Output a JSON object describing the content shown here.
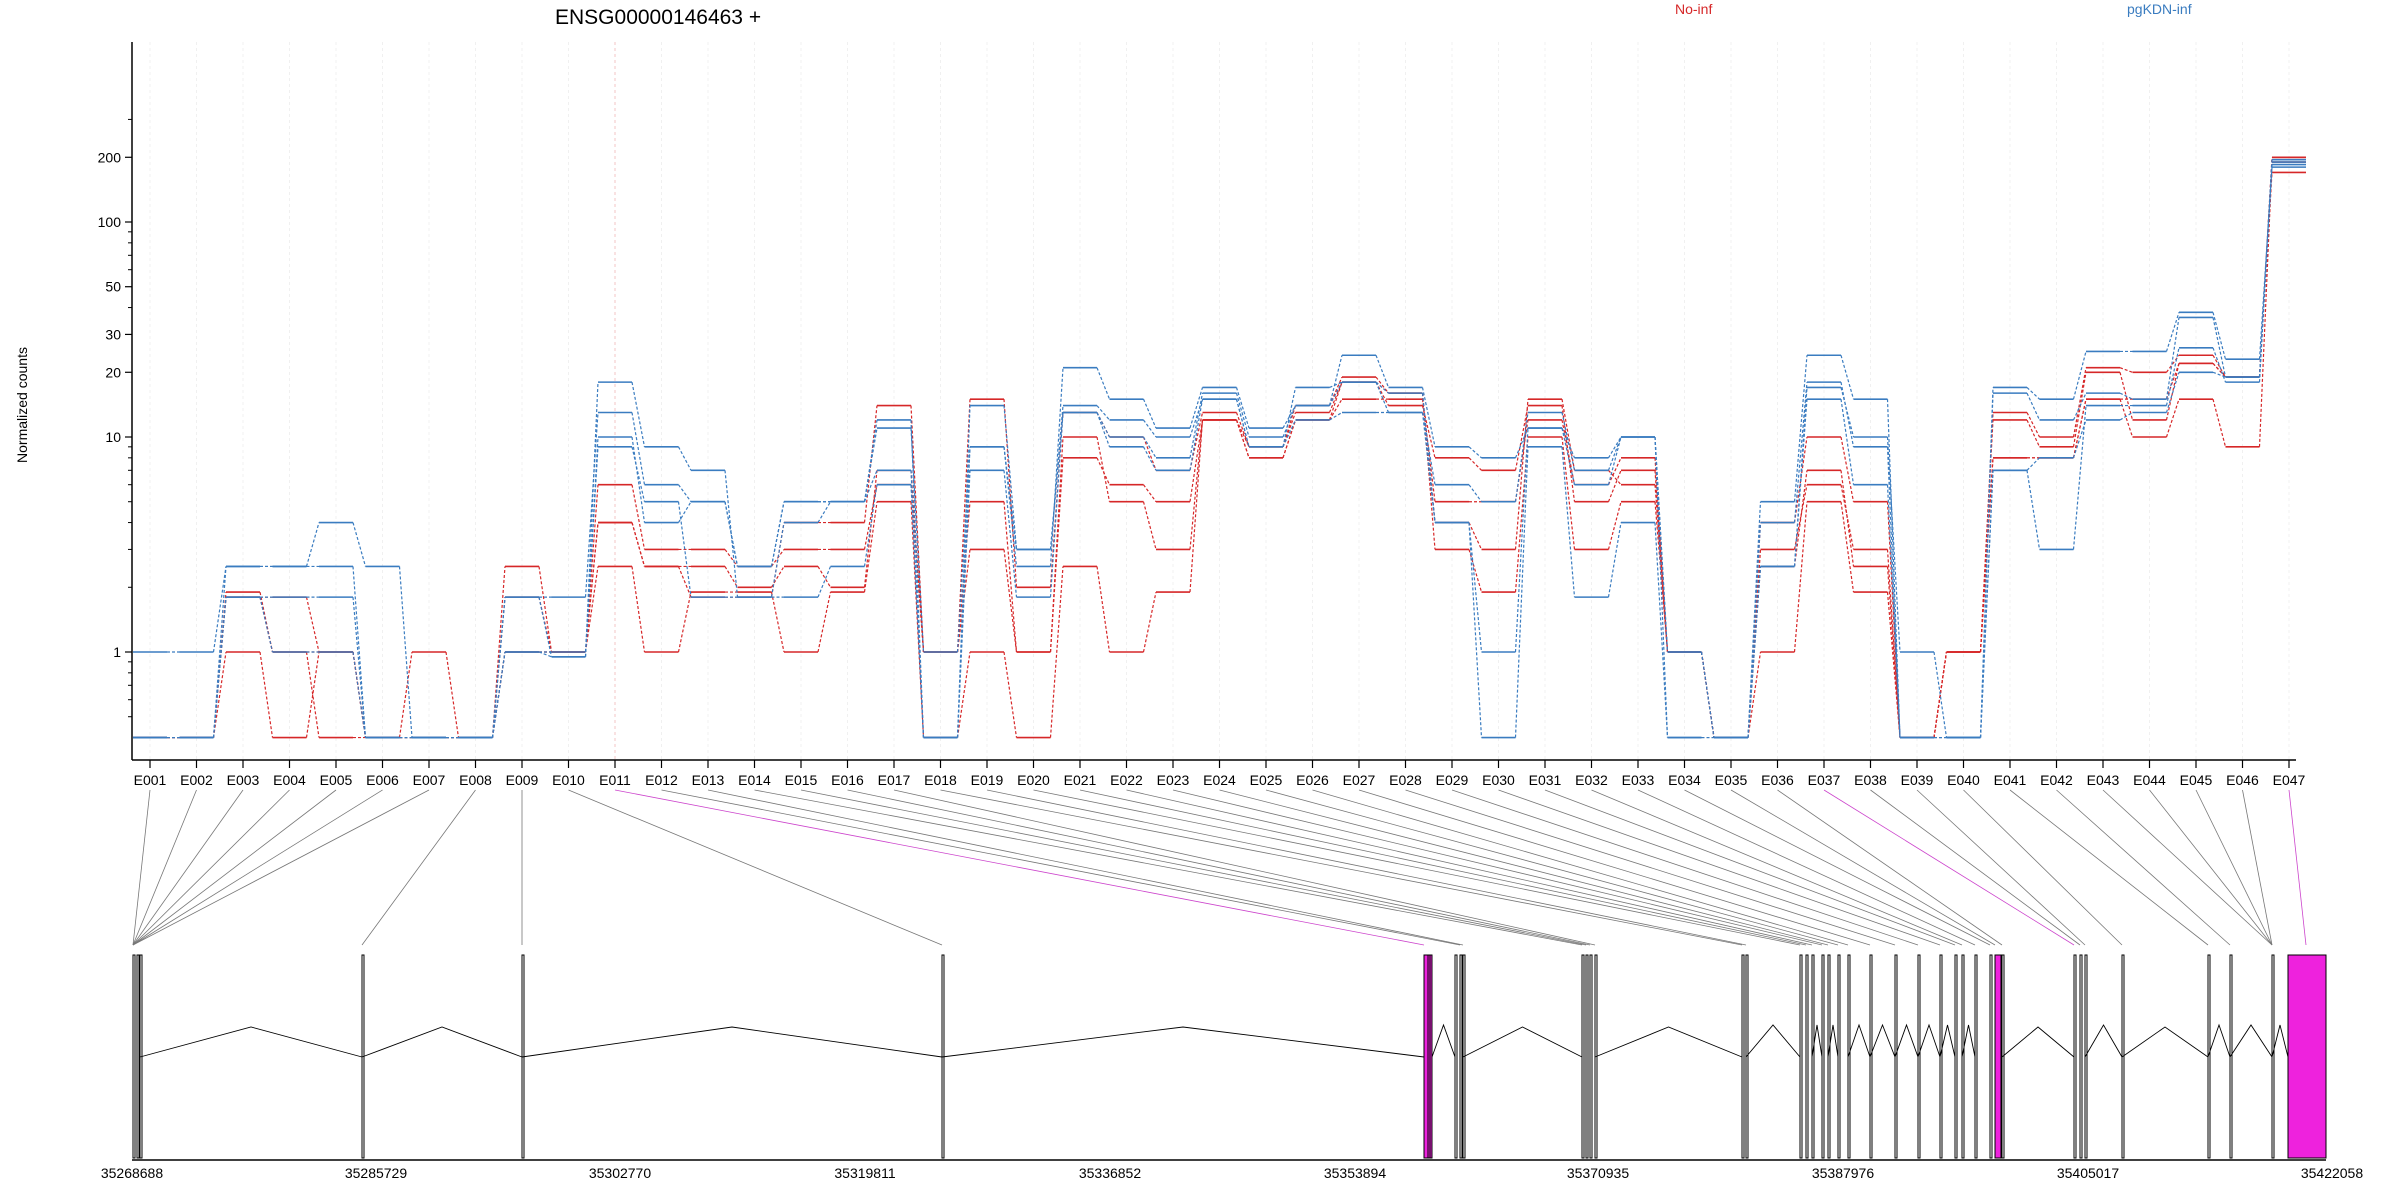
{
  "chart_data": {
    "type": "line",
    "title": "ENSG00000146463 +",
    "ylabel": "Normalized counts",
    "xlabel": "",
    "yscale": "log",
    "ylim": [
      0.4,
      250
    ],
    "y_ticks": [
      1,
      10,
      20,
      30,
      50,
      100,
      200
    ],
    "grid": true,
    "legend": {
      "placement": "top",
      "entries": [
        {
          "name": "No-inf",
          "color": "#d62728"
        },
        {
          "name": "pgKDN-inf",
          "color": "#3a7cc0"
        }
      ]
    },
    "categories": [
      "E001",
      "E002",
      "E003",
      "E004",
      "E005",
      "E006",
      "E007",
      "E008",
      "E009",
      "E010",
      "E011",
      "E012",
      "E013",
      "E014",
      "E015",
      "E016",
      "E017",
      "E018",
      "E019",
      "E020",
      "E021",
      "E022",
      "E023",
      "E024",
      "E025",
      "E026",
      "E027",
      "E028",
      "E029",
      "E030",
      "E031",
      "E032",
      "E033",
      "E034",
      "E035",
      "E036",
      "E037",
      "E038",
      "E039",
      "E040",
      "E041",
      "E042",
      "E043",
      "E044",
      "E045",
      "E046",
      "E047"
    ],
    "series": [
      {
        "group": "No-inf",
        "color": "#d62728",
        "values": [
          0.4,
          0.4,
          1.8,
          1.0,
          1.0,
          0.4,
          0.4,
          0.4,
          2.5,
          1.0,
          4.0,
          2.5,
          2.5,
          2.0,
          2.5,
          2.0,
          7.0,
          1.0,
          15.0,
          2.0,
          13.0,
          10.0,
          7.0,
          13.0,
          9.0,
          14.0,
          19.0,
          16.0,
          4.0,
          3.0,
          15.0,
          7.0,
          6.0,
          1.0,
          0.4,
          4.0,
          10.0,
          5.0,
          0.4,
          1.0,
          13.0,
          10.0,
          21.0,
          20.0,
          24.0,
          19.0,
          200.0
        ]
      },
      {
        "group": "No-inf",
        "color": "#d62728",
        "values": [
          0.4,
          0.4,
          1.0,
          0.4,
          1.0,
          0.4,
          1.0,
          0.4,
          1.0,
          1.0,
          6.0,
          3.0,
          3.0,
          2.5,
          3.0,
          3.0,
          6.0,
          1.0,
          3.0,
          1.0,
          8.0,
          6.0,
          5.0,
          12.0,
          8.0,
          12.0,
          15.0,
          15.0,
          5.0,
          5.0,
          12.0,
          6.0,
          8.0,
          1.0,
          0.4,
          3.0,
          6.0,
          3.0,
          0.4,
          1.0,
          8.0,
          8.0,
          15.0,
          15.0,
          22.0,
          19.0,
          195.0
        ]
      },
      {
        "group": "No-inf",
        "color": "#d62728",
        "values": [
          0.4,
          0.4,
          1.9,
          1.0,
          0.4,
          0.4,
          0.4,
          0.4,
          1.0,
          1.0,
          2.5,
          1.0,
          1.9,
          1.9,
          1.0,
          1.9,
          5.0,
          0.4,
          1.0,
          0.4,
          2.5,
          1.0,
          1.9,
          12.0,
          9.0,
          13.0,
          18.0,
          16.0,
          3.0,
          1.9,
          10.0,
          3.0,
          5.0,
          1.0,
          0.4,
          1.0,
          5.0,
          1.9,
          0.4,
          1.0,
          8.0,
          8.0,
          15.0,
          10.0,
          15.0,
          9.0,
          190.0
        ]
      },
      {
        "group": "No-inf",
        "color": "#d62728",
        "values": [
          0.4,
          0.4,
          1.8,
          1.8,
          1.0,
          0.4,
          0.4,
          0.4,
          1.8,
          1.0,
          4.0,
          2.5,
          1.8,
          1.8,
          4.0,
          4.0,
          14.0,
          1.0,
          5.0,
          1.0,
          10.0,
          5.0,
          3.0,
          12.0,
          8.0,
          12.0,
          18.0,
          14.0,
          8.0,
          7.0,
          14.0,
          5.0,
          7.0,
          1.0,
          0.4,
          2.5,
          7.0,
          2.5,
          0.4,
          1.0,
          12.0,
          9.0,
          20.0,
          12.0,
          22.0,
          19.0,
          170.0
        ]
      },
      {
        "group": "pgKDN-inf",
        "color": "#3a7cc0",
        "values": [
          1.0,
          1.0,
          2.5,
          2.5,
          4.0,
          2.5,
          0.4,
          0.4,
          1.0,
          0.95,
          18.0,
          9.0,
          7.0,
          1.8,
          4.0,
          5.0,
          11.0,
          1.0,
          9.0,
          2.5,
          21.0,
          15.0,
          11.0,
          17.0,
          11.0,
          14.0,
          24.0,
          17.0,
          9.0,
          8.0,
          11.0,
          8.0,
          10.0,
          1.0,
          0.4,
          5.0,
          24.0,
          15.0,
          0.4,
          0.4,
          17.0,
          15.0,
          25.0,
          25.0,
          38.0,
          23.0,
          180.0
        ]
      },
      {
        "group": "pgKDN-inf",
        "color": "#3a7cc0",
        "values": [
          0.4,
          0.4,
          2.5,
          2.5,
          2.5,
          0.4,
          0.4,
          0.4,
          1.8,
          1.8,
          13.0,
          6.0,
          5.0,
          2.5,
          5.0,
          5.0,
          7.0,
          0.4,
          14.0,
          3.0,
          14.0,
          12.0,
          10.0,
          15.0,
          9.0,
          17.0,
          18.0,
          13.0,
          6.0,
          5.0,
          13.0,
          7.0,
          10.0,
          0.4,
          0.4,
          4.0,
          18.0,
          9.0,
          0.4,
          0.4,
          16.0,
          12.0,
          16.0,
          15.0,
          36.0,
          19.0,
          185.0
        ]
      },
      {
        "group": "pgKDN-inf",
        "color": "#3a7cc0",
        "values": [
          0.4,
          0.4,
          1.8,
          1.8,
          1.8,
          0.4,
          0.4,
          0.4,
          1.8,
          0.95,
          10.0,
          4.0,
          5.0,
          2.5,
          5.0,
          5.0,
          12.0,
          0.4,
          9.0,
          3.0,
          13.0,
          10.0,
          8.0,
          16.0,
          10.0,
          14.0,
          18.0,
          16.0,
          4.0,
          1.0,
          11.0,
          6.0,
          10.0,
          1.0,
          0.4,
          2.5,
          17.0,
          10.0,
          1.0,
          0.4,
          7.0,
          3.0,
          14.0,
          14.0,
          26.0,
          18.0,
          190.0
        ]
      },
      {
        "group": "pgKDN-inf",
        "color": "#3a7cc0",
        "values": [
          0.4,
          0.4,
          1.8,
          1.0,
          1.0,
          0.4,
          0.4,
          0.4,
          1.0,
          1.0,
          9.0,
          5.0,
          1.8,
          1.8,
          1.8,
          2.5,
          6.0,
          0.4,
          7.0,
          1.8,
          13.0,
          9.0,
          7.0,
          15.0,
          9.0,
          12.0,
          13.0,
          13.0,
          4.0,
          0.4,
          9.0,
          1.8,
          4.0,
          0.4,
          0.4,
          2.5,
          15.0,
          6.0,
          0.4,
          0.4,
          7.0,
          8.0,
          12.0,
          13.0,
          20.0,
          19.0,
          195.0
        ]
      }
    ],
    "gene_model": {
      "coordinate_ticks": [
        "35268688",
        "35285729",
        "35302770",
        "35319811",
        "35336852",
        "35353894",
        "35370935",
        "35387976",
        "35405017",
        "35422058"
      ]
    }
  }
}
